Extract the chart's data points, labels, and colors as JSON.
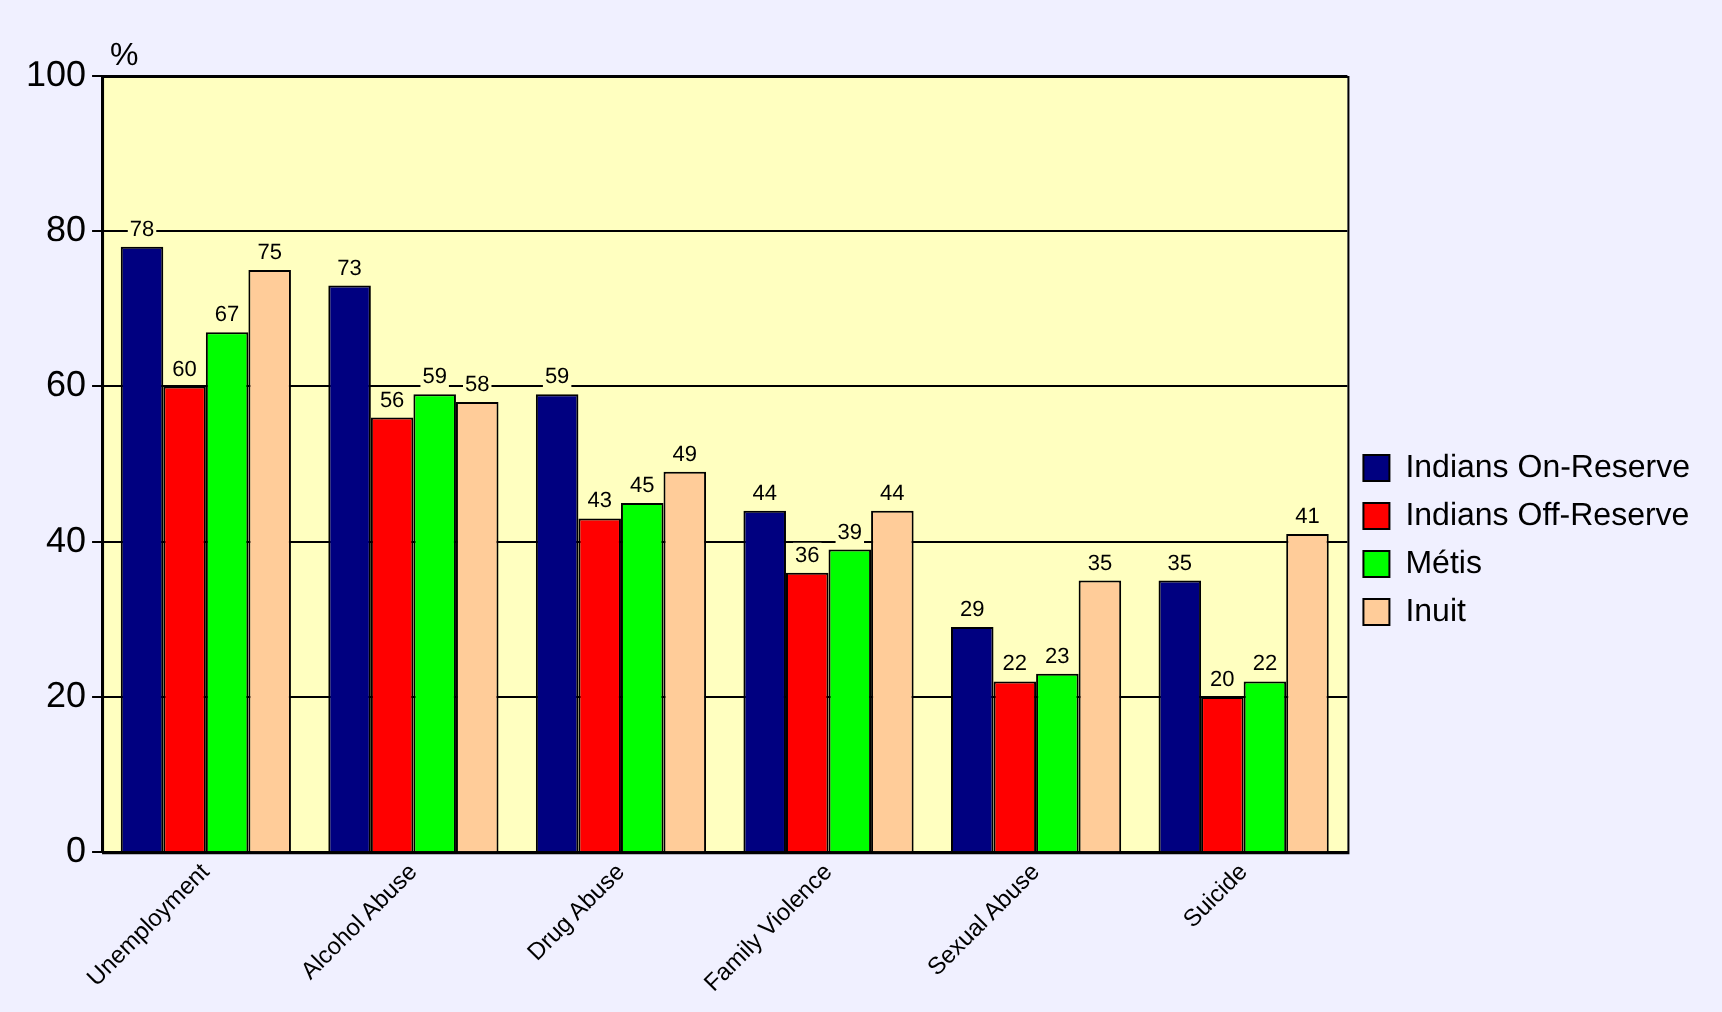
{
  "chart_data": {
    "type": "bar",
    "ylabel": "%",
    "categories": [
      "Unemployment",
      "Alcohol Abuse",
      "Drug Abuse",
      "Family Violence",
      "Sexual Abuse",
      "Suicide"
    ],
    "series": [
      {
        "name": "Indians On-Reserve",
        "color": "#000080",
        "values": [
          78,
          73,
          59,
          44,
          29,
          35
        ]
      },
      {
        "name": "Indians Off-Reserve",
        "color": "#ff0000",
        "values": [
          60,
          56,
          43,
          36,
          22,
          20
        ]
      },
      {
        "name": "Métis",
        "color": "#00ff00",
        "values": [
          67,
          59,
          45,
          39,
          23,
          22
        ]
      },
      {
        "name": "Inuit",
        "color": "#ffcc99",
        "values": [
          75,
          58,
          49,
          44,
          35,
          41
        ]
      }
    ],
    "ylim": [
      0,
      100
    ],
    "yticks": [
      0,
      20,
      40,
      60,
      80,
      100
    ],
    "grid": "y",
    "legend": "right",
    "data_labels": true
  }
}
